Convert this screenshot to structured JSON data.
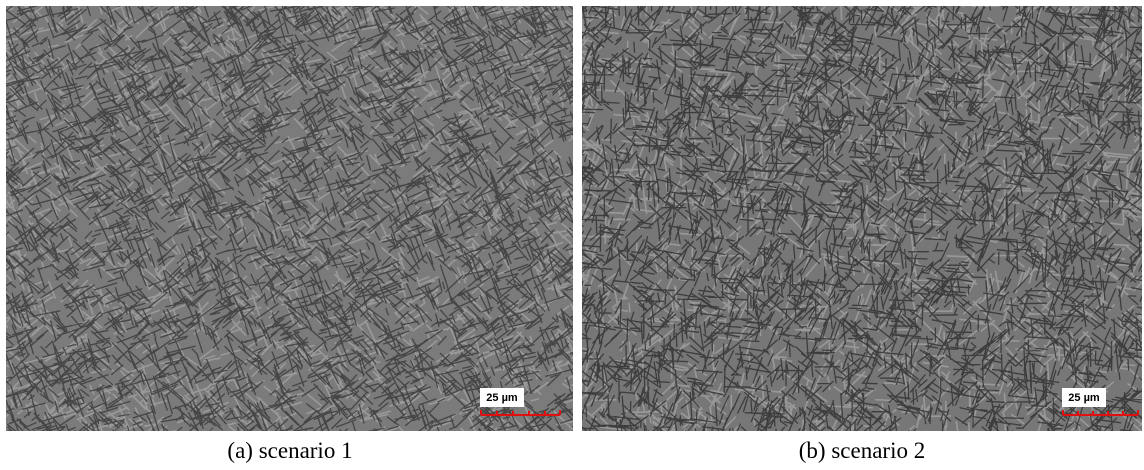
{
  "panels": [
    {
      "scale_label": "25 µm",
      "caption": "(a) scenario 1"
    },
    {
      "scale_label": "25 µm",
      "caption": "(b) scenario 2"
    }
  ]
}
